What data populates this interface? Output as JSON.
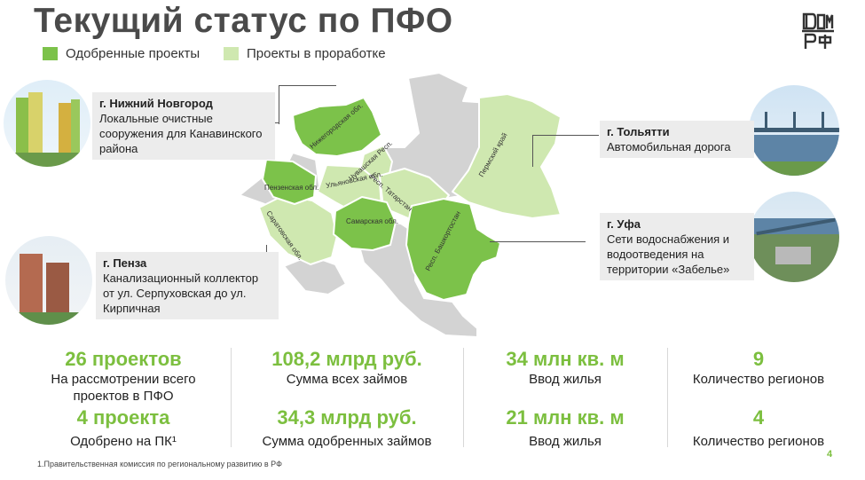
{
  "title": "Текущий статус по ПФО",
  "legend": {
    "approved": "Одобренные проекты",
    "in_progress": "Проекты в проработке",
    "approved_color": "#7cc24a",
    "in_progress_color": "#cfe8b0"
  },
  "logo_icon": "dom-rf-logo",
  "map_regions": {
    "nn": "Нижегородская обл.",
    "chuv": "Чувашская Респ.",
    "penza": "Пензенская обл.",
    "ulyan": "Ульяновская обл.",
    "tatar": "Респ. Татарстан",
    "perm": "Пермский край",
    "saratov": "Саратовская обл.",
    "samara": "Самарская обл.",
    "bash": "Респ. Башкортостан"
  },
  "cards": {
    "nn": {
      "city": "г. Нижний Новгород",
      "desc": "Локальные очистные сооружения для Канавинского района"
    },
    "penza": {
      "city": "г. Пенза",
      "desc": "Канализационный коллектор от ул. Серпуховская до ул. Кирпичная"
    },
    "tolyatti": {
      "city": "г. Тольятти",
      "desc": "Автомобильная дорога"
    },
    "ufa": {
      "city": "г. Уфа",
      "desc": "Сети водоснабжения и водоотведения на территории «Забелье»"
    }
  },
  "stats": [
    {
      "v1": "26 проектов",
      "l1": "На рассмотрении всего проектов в ПФО",
      "v2": "4 проекта",
      "l2": "Одобрено на ПК¹"
    },
    {
      "v1": "108,2 млрд руб.",
      "l1": "Сумма всех займов",
      "v2": "34,3 млрд руб.",
      "l2": "Сумма одобренных займов"
    },
    {
      "v1": "34 млн кв. м",
      "l1": "Ввод жилья",
      "v2": "21 млн кв. м",
      "l2": "Ввод жилья"
    },
    {
      "v1": "9",
      "l1": "Количество регионов",
      "v2": "4",
      "l2": "Количество регионов"
    }
  ],
  "footnote": "1.Правительственная комиссия по региональному развитию в РФ",
  "page_number": "4"
}
